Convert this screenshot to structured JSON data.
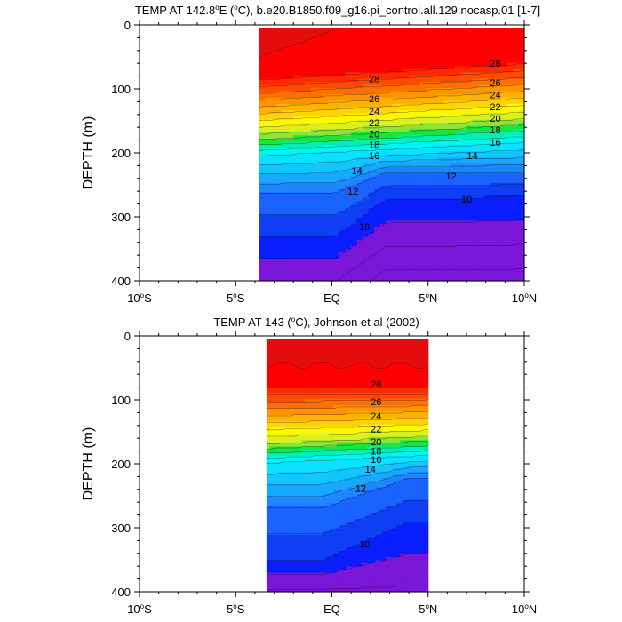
{
  "chart_data": [
    {
      "type": "heatmap",
      "title": "TEMP AT 142.8°E (°C), b.e20.B1850.f09_g16.pi_control.all.129.nocasp.01 [1-7]",
      "title_parts": {
        "pre": "TEMP AT 142.8",
        "deg1": "o",
        "mid": "E (",
        "deg2": "o",
        "post": "C), b.e20.B1850.f09_g16.pi_control.all.129.nocasp.01 [1-7]"
      },
      "ylabel": "DEPTH (m)",
      "xlabel": "",
      "xlim": [
        -10,
        10
      ],
      "ylim": [
        400,
        0
      ],
      "y_reversed": true,
      "data_extent_lat": [
        -3.8,
        10
      ],
      "data_extent_depth": [
        5,
        400
      ],
      "x_ticks": [
        {
          "value": -10,
          "label": "10",
          "hemi": "S"
        },
        {
          "value": -5,
          "label": "5",
          "hemi": "S"
        },
        {
          "value": 0,
          "label": "EQ",
          "hemi": ""
        },
        {
          "value": 5,
          "label": "5",
          "hemi": "N"
        },
        {
          "value": 10,
          "label": "10",
          "hemi": "N"
        }
      ],
      "y_ticks": [
        {
          "value": 0,
          "label": "0"
        },
        {
          "value": 100,
          "label": "100"
        },
        {
          "value": 200,
          "label": "200"
        },
        {
          "value": 300,
          "label": "300"
        },
        {
          "value": 400,
          "label": "400"
        }
      ],
      "contour_levels": [
        6,
        7,
        8,
        9,
        10,
        11,
        12,
        13,
        14,
        15,
        16,
        17,
        18,
        19,
        20,
        21,
        22,
        23,
        24,
        25,
        26,
        27,
        28,
        29
      ],
      "contour_labels": [
        {
          "value": 28,
          "lat": 2.2,
          "depth": 84
        },
        {
          "value": 26,
          "lat": 2.2,
          "depth": 115
        },
        {
          "value": 24,
          "lat": 2.2,
          "depth": 135
        },
        {
          "value": 22,
          "lat": 2.2,
          "depth": 153
        },
        {
          "value": 20,
          "lat": 2.2,
          "depth": 170
        },
        {
          "value": 18,
          "lat": 2.2,
          "depth": 187
        },
        {
          "value": 16,
          "lat": 2.2,
          "depth": 204
        },
        {
          "value": 14,
          "lat": 1.3,
          "depth": 228
        },
        {
          "value": 12,
          "lat": 1.1,
          "depth": 260
        },
        {
          "value": 10,
          "lat": 1.7,
          "depth": 315
        },
        {
          "value": 28,
          "lat": 8.5,
          "depth": 60
        },
        {
          "value": 26,
          "lat": 8.5,
          "depth": 90
        },
        {
          "value": 24,
          "lat": 8.5,
          "depth": 109
        },
        {
          "value": 22,
          "lat": 8.5,
          "depth": 128
        },
        {
          "value": 20,
          "lat": 8.5,
          "depth": 146
        },
        {
          "value": 18,
          "lat": 8.5,
          "depth": 164
        },
        {
          "value": 16,
          "lat": 8.5,
          "depth": 183
        },
        {
          "value": 14,
          "lat": 7.3,
          "depth": 204
        },
        {
          "value": 12,
          "lat": 6.2,
          "depth": 236
        },
        {
          "value": 10,
          "lat": 7.0,
          "depth": 272
        }
      ]
    },
    {
      "type": "heatmap",
      "title": "TEMP AT 143 (°C), Johnson et al (2002)",
      "title_parts": {
        "pre": "TEMP AT 143 (",
        "deg1": "o",
        "mid": "C), Johnson et al (2002)",
        "deg2": "",
        "post": ""
      },
      "ylabel": "DEPTH (m)",
      "xlabel": "",
      "xlim": [
        -10,
        10
      ],
      "ylim": [
        400,
        0
      ],
      "y_reversed": true,
      "data_extent_lat": [
        -3.4,
        5
      ],
      "data_extent_depth": [
        5,
        400
      ],
      "x_ticks": [
        {
          "value": -10,
          "label": "10",
          "hemi": "S"
        },
        {
          "value": -5,
          "label": "5",
          "hemi": "S"
        },
        {
          "value": 0,
          "label": "EQ",
          "hemi": ""
        },
        {
          "value": 5,
          "label": "5",
          "hemi": "N"
        },
        {
          "value": 10,
          "label": "10",
          "hemi": "N"
        }
      ],
      "y_ticks": [
        {
          "value": 0,
          "label": "0"
        },
        {
          "value": 100,
          "label": "100"
        },
        {
          "value": 200,
          "label": "200"
        },
        {
          "value": 300,
          "label": "300"
        },
        {
          "value": 400,
          "label": "400"
        }
      ],
      "contour_levels": [
        7,
        8,
        9,
        10,
        11,
        12,
        13,
        14,
        15,
        16,
        17,
        18,
        19,
        20,
        21,
        22,
        23,
        24,
        25,
        26,
        27,
        28,
        29
      ],
      "contour_labels": [
        {
          "value": 28,
          "lat": 2.3,
          "depth": 75
        },
        {
          "value": 26,
          "lat": 2.3,
          "depth": 103
        },
        {
          "value": 24,
          "lat": 2.3,
          "depth": 125
        },
        {
          "value": 22,
          "lat": 2.3,
          "depth": 145
        },
        {
          "value": 20,
          "lat": 2.3,
          "depth": 165
        },
        {
          "value": 18,
          "lat": 2.3,
          "depth": 180
        },
        {
          "value": 16,
          "lat": 2.3,
          "depth": 193
        },
        {
          "value": 14,
          "lat": 2.0,
          "depth": 208
        },
        {
          "value": 12,
          "lat": 1.5,
          "depth": 238
        },
        {
          "value": 10,
          "lat": 1.7,
          "depth": 325
        }
      ]
    }
  ]
}
